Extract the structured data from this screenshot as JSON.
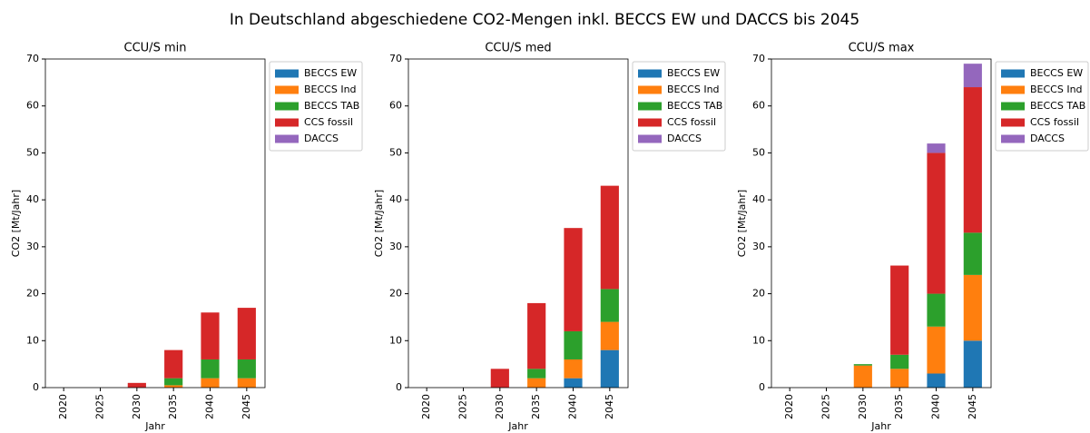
{
  "title": "In Deutschland abgeschiedene CO2-Mengen inkl. BECCS EW und DACCS bis 2045",
  "chart_data": [
    {
      "type": "bar",
      "stacked": true,
      "title": "CCU/S min",
      "xlabel": "Jahr",
      "ylabel": "CO2 [Mt/Jahr]",
      "categories": [
        "2020",
        "2025",
        "2030",
        "2035",
        "2040",
        "2045"
      ],
      "series": [
        {
          "name": "BECCS EW",
          "color": "#1f77b4",
          "values": [
            0,
            0,
            0,
            0,
            0,
            0
          ]
        },
        {
          "name": "BECCS Ind",
          "color": "#ff7f0e",
          "values": [
            0,
            0,
            0,
            0.5,
            2,
            2
          ]
        },
        {
          "name": "BECCS TAB",
          "color": "#2ca02c",
          "values": [
            0,
            0,
            0,
            1.5,
            4,
            4
          ]
        },
        {
          "name": "CCS fossil",
          "color": "#d62728",
          "values": [
            0,
            0,
            1,
            6,
            10,
            11
          ]
        },
        {
          "name": "DACCS",
          "color": "#9467bd",
          "values": [
            0,
            0,
            0,
            0,
            0,
            0
          ]
        }
      ],
      "ylim": [
        0,
        70
      ],
      "yticks": [
        0,
        10,
        20,
        30,
        40,
        50,
        60,
        70
      ],
      "legend": "right"
    },
    {
      "type": "bar",
      "stacked": true,
      "title": "CCU/S med",
      "xlabel": "Jahr",
      "ylabel": "CO2 [Mt/Jahr]",
      "categories": [
        "2020",
        "2025",
        "2030",
        "2035",
        "2040",
        "2045"
      ],
      "series": [
        {
          "name": "BECCS EW",
          "color": "#1f77b4",
          "values": [
            0,
            0,
            0,
            0,
            2,
            8
          ]
        },
        {
          "name": "BECCS Ind",
          "color": "#ff7f0e",
          "values": [
            0,
            0,
            0,
            2,
            4,
            6
          ]
        },
        {
          "name": "BECCS TAB",
          "color": "#2ca02c",
          "values": [
            0,
            0,
            0,
            2,
            6,
            7
          ]
        },
        {
          "name": "CCS fossil",
          "color": "#d62728",
          "values": [
            0,
            0,
            4,
            14,
            22,
            22
          ]
        },
        {
          "name": "DACCS",
          "color": "#9467bd",
          "values": [
            0,
            0,
            0,
            0,
            0,
            0
          ]
        }
      ],
      "ylim": [
        0,
        70
      ],
      "yticks": [
        0,
        10,
        20,
        30,
        40,
        50,
        60,
        70
      ],
      "legend": "right"
    },
    {
      "type": "bar",
      "stacked": true,
      "title": "CCU/S max",
      "xlabel": "Jahr",
      "ylabel": "CO2 [Mt/Jahr]",
      "categories": [
        "2020",
        "2025",
        "2030",
        "2035",
        "2040",
        "2045"
      ],
      "series": [
        {
          "name": "BECCS EW",
          "color": "#1f77b4",
          "values": [
            0,
            0,
            0,
            0,
            3,
            10
          ]
        },
        {
          "name": "BECCS Ind",
          "color": "#ff7f0e",
          "values": [
            0,
            0,
            4.7,
            4,
            10,
            14
          ]
        },
        {
          "name": "BECCS TAB",
          "color": "#2ca02c",
          "values": [
            0,
            0,
            0.3,
            3,
            7,
            9
          ]
        },
        {
          "name": "CCS fossil",
          "color": "#d62728",
          "values": [
            0,
            0,
            0,
            19,
            30,
            31
          ]
        },
        {
          "name": "DACCS",
          "color": "#9467bd",
          "values": [
            0,
            0,
            0,
            0,
            2,
            5
          ]
        }
      ],
      "ylim": [
        0,
        70
      ],
      "yticks": [
        0,
        10,
        20,
        30,
        40,
        50,
        60,
        70
      ],
      "legend": "right"
    }
  ]
}
